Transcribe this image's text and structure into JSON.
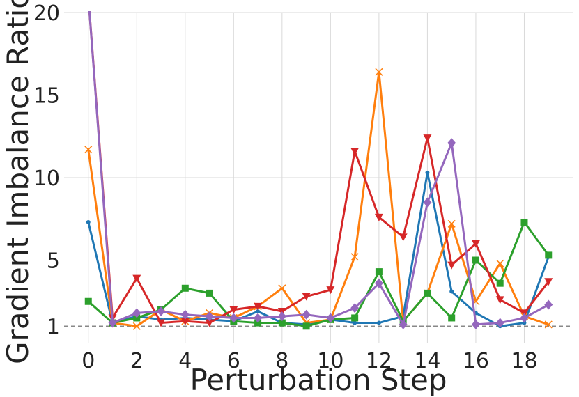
{
  "chart_data": {
    "type": "line",
    "title": "",
    "xlabel": "Perturbation Step",
    "ylabel": "Gradient Imbalance Ratio",
    "xlim": [
      -1,
      20
    ],
    "ylim": [
      0,
      20
    ],
    "xticks": [
      0,
      2,
      4,
      6,
      8,
      10,
      12,
      14,
      16,
      18
    ],
    "yticks": [
      1,
      5,
      10,
      15,
      20
    ],
    "grid": true,
    "reference_line": {
      "y": 1,
      "style": "dashed",
      "color": "#888888"
    },
    "x": [
      0,
      1,
      2,
      3,
      4,
      5,
      6,
      7,
      8,
      9,
      10,
      11,
      12,
      13,
      14,
      15,
      16,
      17,
      18,
      19
    ],
    "series": [
      {
        "color": "#1f77b4",
        "marker": "circle",
        "values": [
          7.3,
          1.2,
          1.6,
          1.4,
          1.5,
          1.4,
          1.3,
          1.9,
          1.2,
          1.1,
          1.4,
          1.2,
          1.2,
          1.6,
          10.3,
          3.1,
          1.8,
          1.0,
          1.2,
          5.2
        ]
      },
      {
        "color": "#ff7f0e",
        "marker": "x",
        "values": [
          11.7,
          1.2,
          1.0,
          2.0,
          1.3,
          1.8,
          1.5,
          2.2,
          3.3,
          1.2,
          1.4,
          5.2,
          16.4,
          1.3,
          3.0,
          7.2,
          2.5,
          4.8,
          1.6,
          1.1
        ]
      },
      {
        "color": "#2ca02c",
        "marker": "square",
        "values": [
          2.5,
          1.2,
          1.5,
          2.0,
          3.3,
          3.0,
          1.3,
          1.2,
          1.2,
          1.0,
          1.4,
          1.5,
          4.3,
          1.3,
          3.0,
          1.5,
          5.0,
          3.6,
          7.3,
          5.3
        ]
      },
      {
        "color": "#d62728",
        "marker": "triangle-down",
        "values": [
          21.0,
          1.5,
          3.9,
          1.2,
          1.3,
          1.2,
          2.0,
          2.2,
          1.9,
          2.8,
          3.2,
          11.6,
          7.6,
          6.4,
          12.4,
          4.7,
          6.0,
          2.6,
          1.8,
          3.7
        ]
      },
      {
        "color": "#9467bd",
        "marker": "diamond",
        "values": [
          21.0,
          1.2,
          1.8,
          1.9,
          1.7,
          1.6,
          1.5,
          1.5,
          1.6,
          1.7,
          1.5,
          2.1,
          3.6,
          1.1,
          8.5,
          12.1,
          1.1,
          1.2,
          1.5,
          2.3
        ]
      }
    ]
  }
}
